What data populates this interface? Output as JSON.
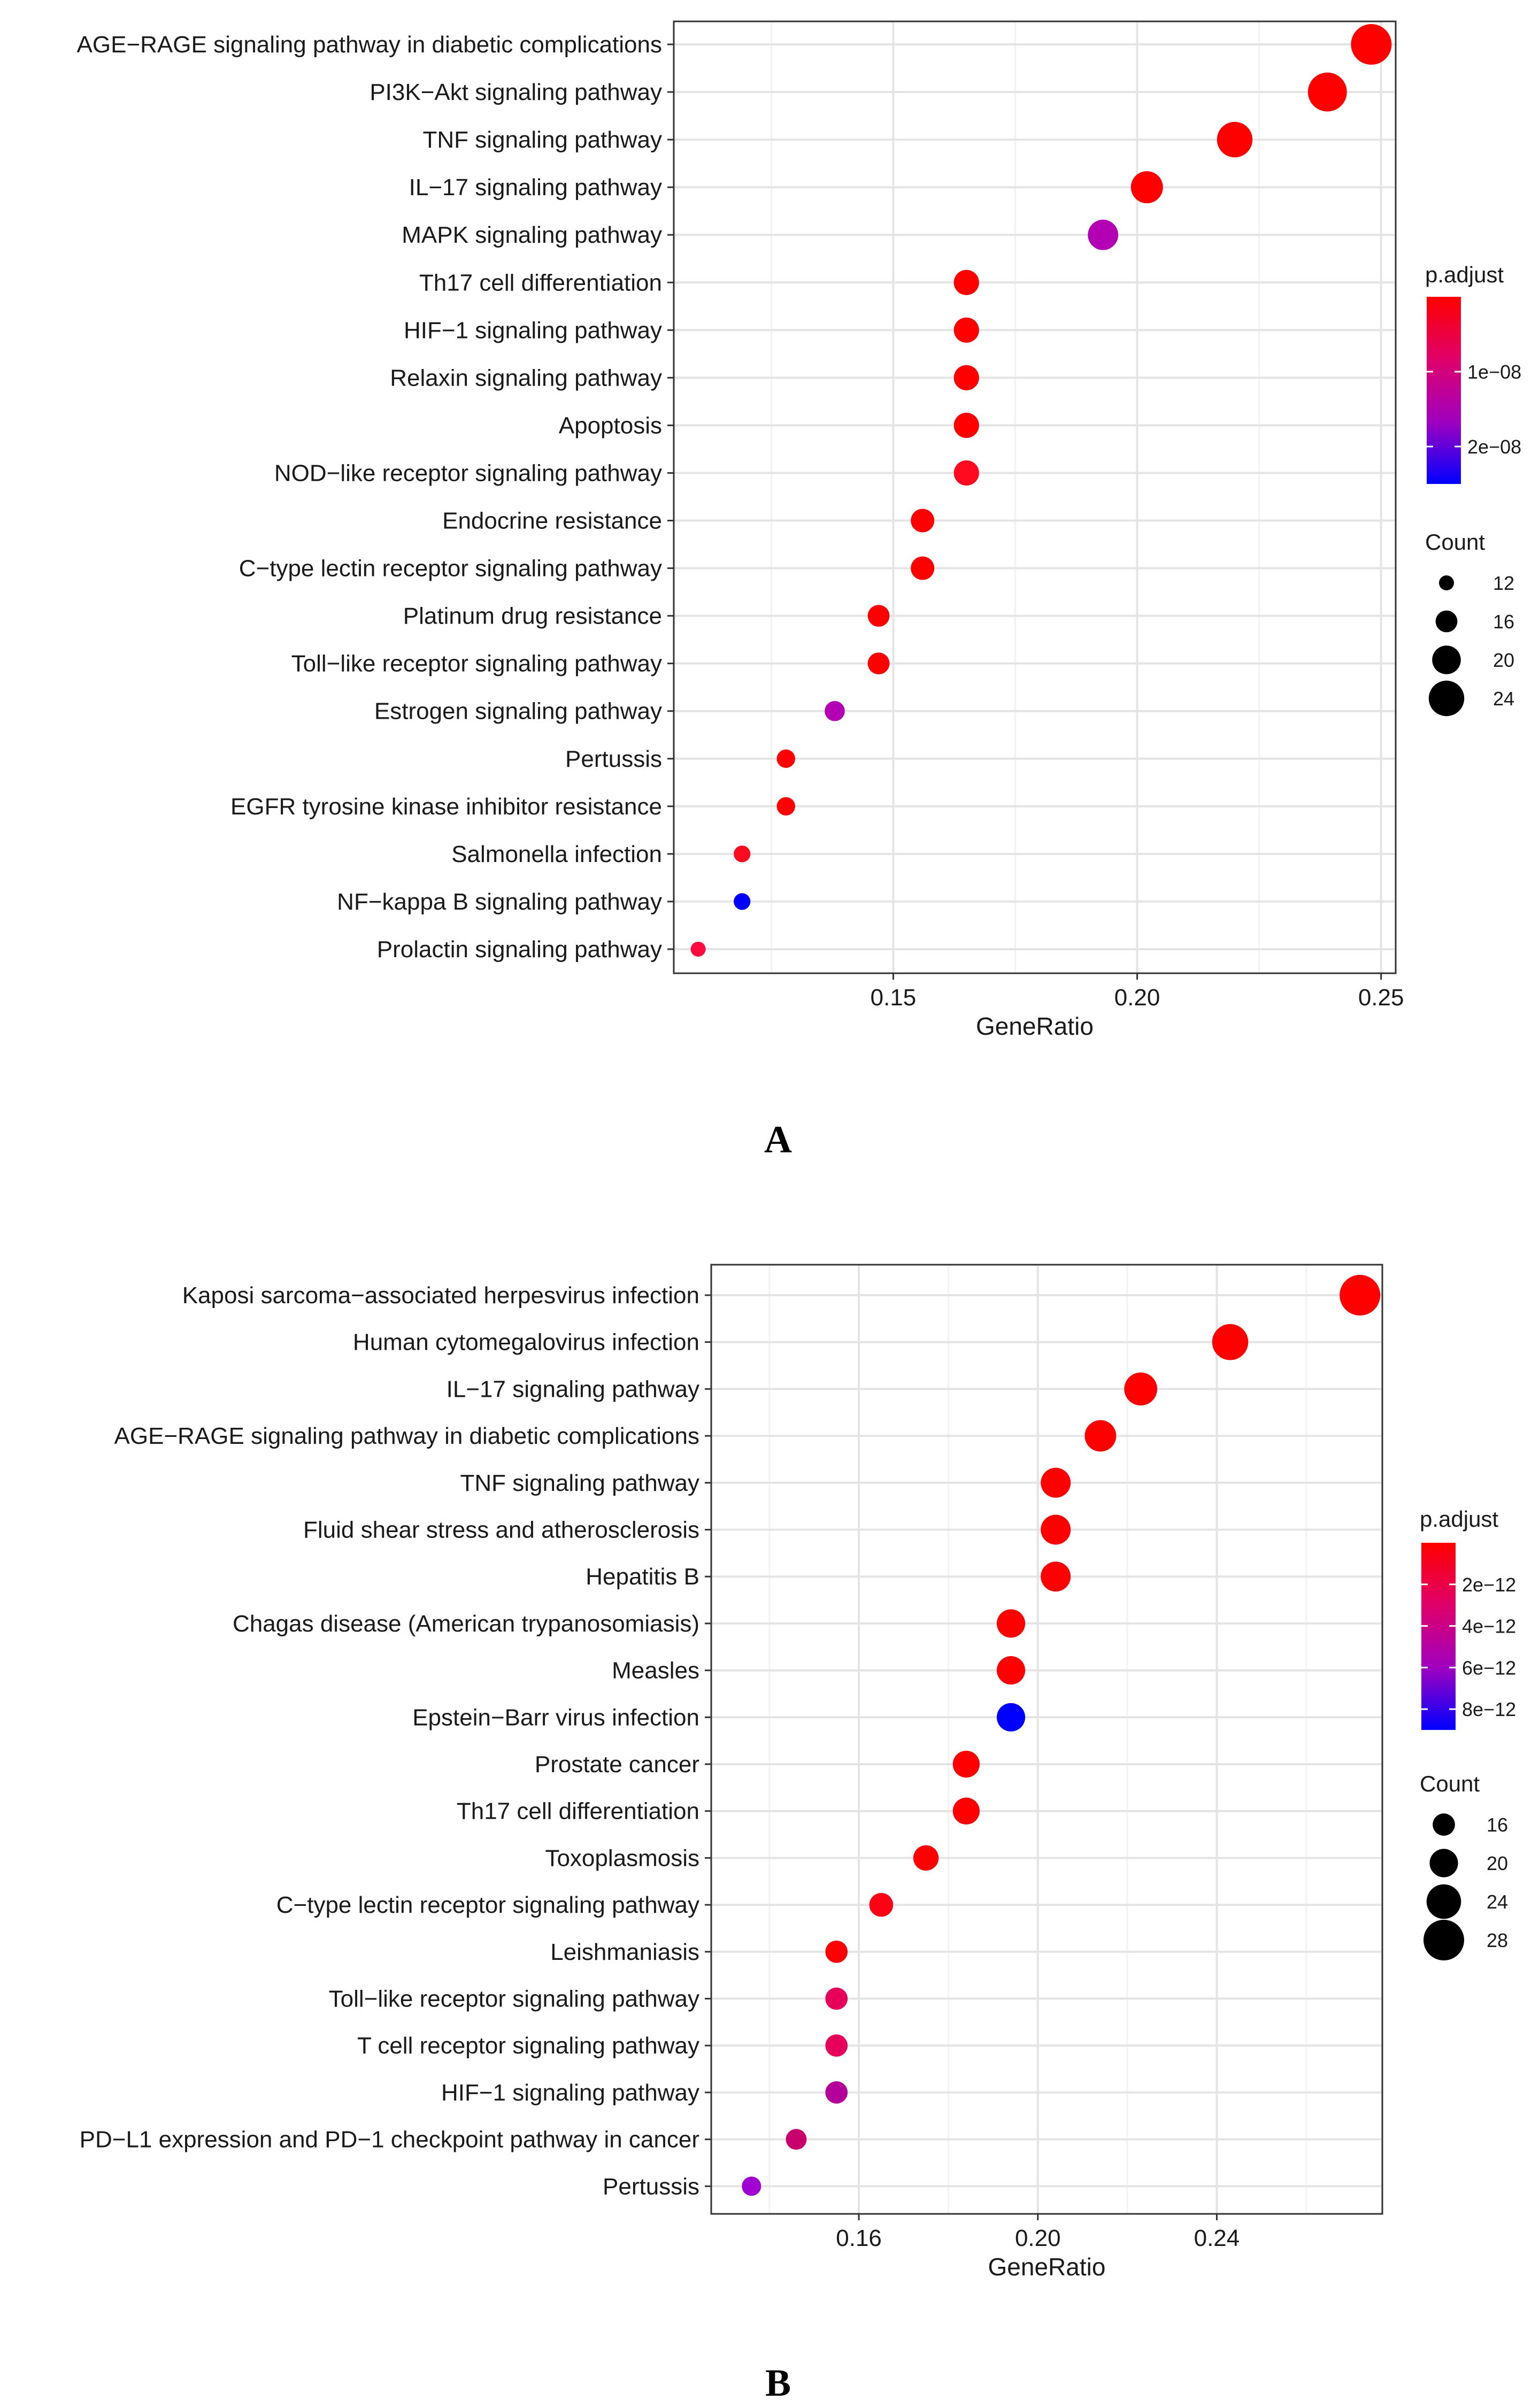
{
  "chart_data": [
    {
      "panel_label": "A",
      "type": "scatter",
      "xlabel": "GeneRatio",
      "xlim": [
        0.105,
        0.253
      ],
      "xticks": [
        0.15,
        0.2,
        0.25
      ],
      "xtick_labels": [
        "0.15",
        "0.20",
        "0.25"
      ],
      "grid": true,
      "legend_placement": "right",
      "color_legend": {
        "title": "p.adjust",
        "min": 0,
        "max": 2.5e-08,
        "ticks": [
          1e-08,
          2e-08
        ],
        "tick_labels": [
          "1e−08",
          "2e−08"
        ],
        "gradient": [
          "#ff0000",
          "#e0006a",
          "#a000c0",
          "#0000ff"
        ]
      },
      "size_legend": {
        "title": "Count",
        "entries": [
          12,
          16,
          20,
          24
        ],
        "labels": [
          "12",
          "16",
          "20",
          "24"
        ]
      },
      "points": [
        {
          "term": "AGE−RAGE signaling pathway in diabetic complications",
          "gene_ratio": 0.248,
          "count": 27,
          "color": "#ff0000"
        },
        {
          "term": "PI3K−Akt signaling pathway",
          "gene_ratio": 0.239,
          "count": 26,
          "color": "#ff0000"
        },
        {
          "term": "TNF signaling pathway",
          "gene_ratio": 0.22,
          "count": 24,
          "color": "#ff0000"
        },
        {
          "term": "IL−17 signaling pathway",
          "gene_ratio": 0.202,
          "count": 22,
          "color": "#ff0000"
        },
        {
          "term": "MAPK signaling pathway",
          "gene_ratio": 0.193,
          "count": 21,
          "color": "#b400b4"
        },
        {
          "term": "Th17 cell differentiation",
          "gene_ratio": 0.165,
          "count": 18,
          "color": "#ff0000"
        },
        {
          "term": "HIF−1 signaling pathway",
          "gene_ratio": 0.165,
          "count": 18,
          "color": "#ff0000"
        },
        {
          "term": "Relaxin signaling pathway",
          "gene_ratio": 0.165,
          "count": 18,
          "color": "#ff0000"
        },
        {
          "term": "Apoptosis",
          "gene_ratio": 0.165,
          "count": 18,
          "color": "#ff0000"
        },
        {
          "term": "NOD−like receptor signaling pathway",
          "gene_ratio": 0.165,
          "count": 18,
          "color": "#ff0a1e"
        },
        {
          "term": "Endocrine resistance",
          "gene_ratio": 0.156,
          "count": 17,
          "color": "#ff0000"
        },
        {
          "term": "C−type lectin receptor signaling pathway",
          "gene_ratio": 0.156,
          "count": 17,
          "color": "#ff0000"
        },
        {
          "term": "Platinum drug resistance",
          "gene_ratio": 0.147,
          "count": 16,
          "color": "#ff0000"
        },
        {
          "term": "Toll−like receptor signaling pathway",
          "gene_ratio": 0.147,
          "count": 16,
          "color": "#ff0000"
        },
        {
          "term": "Estrogen signaling pathway",
          "gene_ratio": 0.138,
          "count": 15,
          "color": "#b400b4"
        },
        {
          "term": "Pertussis",
          "gene_ratio": 0.128,
          "count": 14,
          "color": "#ff0000"
        },
        {
          "term": "EGFR tyrosine kinase inhibitor resistance",
          "gene_ratio": 0.128,
          "count": 14,
          "color": "#ff0000"
        },
        {
          "term": "Salmonella infection",
          "gene_ratio": 0.119,
          "count": 13,
          "color": "#ff0a1e"
        },
        {
          "term": "NF−kappa B signaling pathway",
          "gene_ratio": 0.119,
          "count": 13,
          "color": "#0000ff"
        },
        {
          "term": "Prolactin signaling pathway",
          "gene_ratio": 0.11,
          "count": 12,
          "color": "#ff0a3c"
        }
      ]
    },
    {
      "panel_label": "B",
      "type": "scatter",
      "xlabel": "GeneRatio",
      "xlim": [
        0.127,
        0.277
      ],
      "xticks": [
        0.16,
        0.2,
        0.24
      ],
      "xtick_labels": [
        "0.16",
        "0.20",
        "0.24"
      ],
      "grid": true,
      "legend_placement": "right",
      "color_legend": {
        "title": "p.adjust",
        "min": 0,
        "max": 9e-12,
        "ticks": [
          2e-12,
          4e-12,
          6e-12,
          8e-12
        ],
        "tick_labels": [
          "2e−12",
          "4e−12",
          "6e−12",
          "8e−12"
        ],
        "gradient": [
          "#ff0000",
          "#e0006a",
          "#a000c0",
          "#0000ff"
        ]
      },
      "size_legend": {
        "title": "Count",
        "entries": [
          16,
          20,
          24,
          28
        ],
        "labels": [
          "16",
          "20",
          "24",
          "28"
        ]
      },
      "points": [
        {
          "term": "Kaposi sarcoma−associated herpesvirus infection",
          "gene_ratio": 0.272,
          "count": 28,
          "color": "#ff0000"
        },
        {
          "term": "Human cytomegalovirus infection",
          "gene_ratio": 0.243,
          "count": 25,
          "color": "#ff0000"
        },
        {
          "term": "IL−17 signaling pathway",
          "gene_ratio": 0.223,
          "count": 23,
          "color": "#ff0000"
        },
        {
          "term": "AGE−RAGE signaling pathway in diabetic complications",
          "gene_ratio": 0.214,
          "count": 22,
          "color": "#ff0000"
        },
        {
          "term": "TNF signaling pathway",
          "gene_ratio": 0.204,
          "count": 21,
          "color": "#ff0000"
        },
        {
          "term": "Fluid shear stress and atherosclerosis",
          "gene_ratio": 0.204,
          "count": 21,
          "color": "#ff0000"
        },
        {
          "term": "Hepatitis B",
          "gene_ratio": 0.204,
          "count": 21,
          "color": "#ff0000"
        },
        {
          "term": "Chagas disease (American trypanosomiasis)",
          "gene_ratio": 0.194,
          "count": 20,
          "color": "#ff0000"
        },
        {
          "term": "Measles",
          "gene_ratio": 0.194,
          "count": 20,
          "color": "#ff0000"
        },
        {
          "term": "Epstein−Barr virus infection",
          "gene_ratio": 0.194,
          "count": 20,
          "color": "#0000ff"
        },
        {
          "term": "Prostate cancer",
          "gene_ratio": 0.184,
          "count": 19,
          "color": "#ff0000"
        },
        {
          "term": "Th17 cell differentiation",
          "gene_ratio": 0.184,
          "count": 19,
          "color": "#ff0000"
        },
        {
          "term": "Toxoplasmosis",
          "gene_ratio": 0.175,
          "count": 18,
          "color": "#ff0000"
        },
        {
          "term": "C−type lectin receptor signaling pathway",
          "gene_ratio": 0.165,
          "count": 17,
          "color": "#ff0014"
        },
        {
          "term": "Leishmaniasis",
          "gene_ratio": 0.155,
          "count": 16,
          "color": "#ff0000"
        },
        {
          "term": "Toll−like receptor signaling pathway",
          "gene_ratio": 0.155,
          "count": 16,
          "color": "#e6005a"
        },
        {
          "term": "T cell receptor signaling pathway",
          "gene_ratio": 0.155,
          "count": 16,
          "color": "#e6005a"
        },
        {
          "term": "HIF−1 signaling pathway",
          "gene_ratio": 0.155,
          "count": 16,
          "color": "#b4009b"
        },
        {
          "term": "PD−L1 expression and PD−1 checkpoint pathway in cancer",
          "gene_ratio": 0.146,
          "count": 15,
          "color": "#c8006e"
        },
        {
          "term": "Pertussis",
          "gene_ratio": 0.136,
          "count": 14,
          "color": "#a000d2"
        }
      ]
    }
  ]
}
